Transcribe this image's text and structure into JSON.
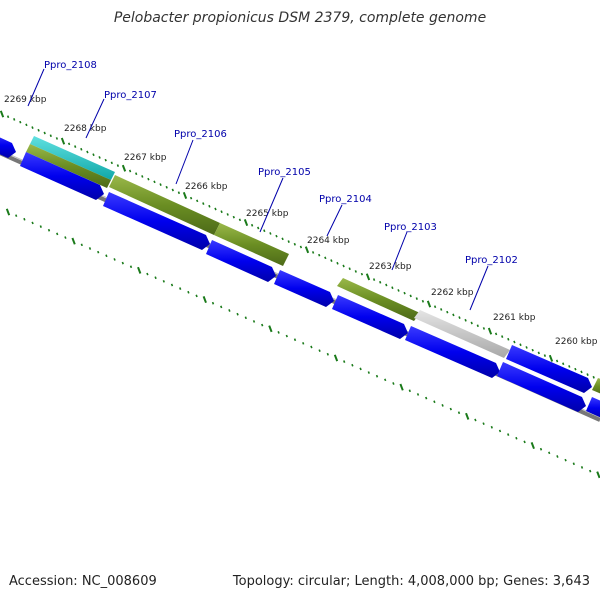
{
  "title": "Pelobacter propionicus DSM 2379, complete genome",
  "footer": {
    "accession": "Accession: NC_008609",
    "summary": "Topology: circular; Length: 4,008,000 bp; Genes: 3,643"
  },
  "colors": {
    "cds": "#0000ee",
    "feature_olive": "#6b8e23",
    "feature_cyan": "#20c0c0",
    "feature_grey": "#c0c0c0",
    "backbone": "#777777",
    "ticks": "#1a7a1a",
    "gene_label": "#0000aa"
  },
  "tick_labels": [
    "2269 kbp",
    "2268 kbp",
    "2267 kbp",
    "2266 kbp",
    "2265 kbp",
    "2264 kbp",
    "2263 kbp",
    "2262 kbp",
    "2261 kbp",
    "2260 kbp"
  ],
  "gene_labels": [
    "Ppro_2108",
    "Ppro_2107",
    "Ppro_2106",
    "Ppro_2105",
    "Ppro_2104",
    "Ppro_2103",
    "Ppro_2102"
  ]
}
